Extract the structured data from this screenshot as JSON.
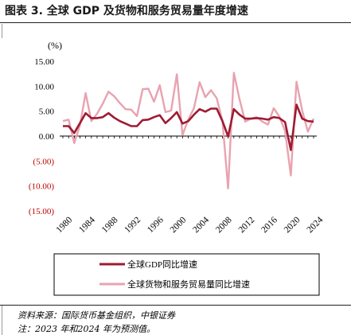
{
  "figure": {
    "title": "图表 3. 全球 GDP 及货物和服务贸易量年度增速",
    "source": "资料来源：国际货币基金组织，中银证券",
    "note": "注：2023 年和2024 年为预测值。"
  },
  "colors": {
    "gdp": "#9e1b32",
    "trade": "#e8a3b0",
    "negative_tick": "#c00000",
    "axis": "#000000"
  },
  "chart_data": {
    "type": "line",
    "unit_label": "(%)",
    "ylim": [
      -15,
      15
    ],
    "y_ticks": [
      15,
      10,
      5,
      0,
      -5,
      -10,
      -15
    ],
    "y_tick_labels": [
      "15.00",
      "10.00",
      "5.00",
      "0.00",
      "(5.00)",
      "(10.00)",
      "(15.00)"
    ],
    "x_tick_labels": [
      "1980",
      "1984",
      "1988",
      "1992",
      "1996",
      "2000",
      "2004",
      "2008",
      "2012",
      "2016",
      "2020",
      "2024"
    ],
    "x": [
      1980,
      1981,
      1982,
      1983,
      1984,
      1985,
      1986,
      1987,
      1988,
      1989,
      1990,
      1991,
      1992,
      1993,
      1994,
      1995,
      1996,
      1997,
      1998,
      1999,
      2000,
      2001,
      2002,
      2003,
      2004,
      2005,
      2006,
      2007,
      2008,
      2009,
      2010,
      2011,
      2012,
      2013,
      2014,
      2015,
      2016,
      2017,
      2018,
      2019,
      2020,
      2021,
      2022,
      2023,
      2024
    ],
    "series": [
      {
        "name": "全球GDP同比增速",
        "values": [
          2.0,
          2.0,
          0.6,
          2.6,
          4.6,
          3.6,
          3.6,
          3.8,
          4.6,
          3.7,
          3.0,
          2.5,
          2.0,
          2.0,
          3.2,
          3.3,
          3.8,
          4.2,
          2.6,
          3.6,
          4.8,
          2.5,
          3.0,
          4.3,
          5.4,
          4.9,
          5.5,
          5.5,
          3.0,
          -0.1,
          5.4,
          4.3,
          3.5,
          3.5,
          3.6,
          3.5,
          3.3,
          3.8,
          3.6,
          2.8,
          -2.8,
          6.3,
          3.5,
          3.0,
          2.9
        ]
      },
      {
        "name": "全球货物和服务贸易量同比增速",
        "values": [
          3.0,
          3.3,
          -1.4,
          2.2,
          8.6,
          3.0,
          4.5,
          6.5,
          8.9,
          8.0,
          6.6,
          5.4,
          5.3,
          4.0,
          9.4,
          9.5,
          6.9,
          10.2,
          4.8,
          5.1,
          12.4,
          0.2,
          3.3,
          5.6,
          10.8,
          7.8,
          9.2,
          7.6,
          3.0,
          -10.5,
          12.7,
          7.4,
          2.9,
          3.5,
          3.8,
          2.9,
          2.3,
          5.6,
          3.9,
          1.0,
          -7.9,
          10.9,
          5.1,
          0.9,
          3.5
        ]
      }
    ],
    "legend": {
      "placement": "bottom-boxed"
    },
    "grid": false
  }
}
